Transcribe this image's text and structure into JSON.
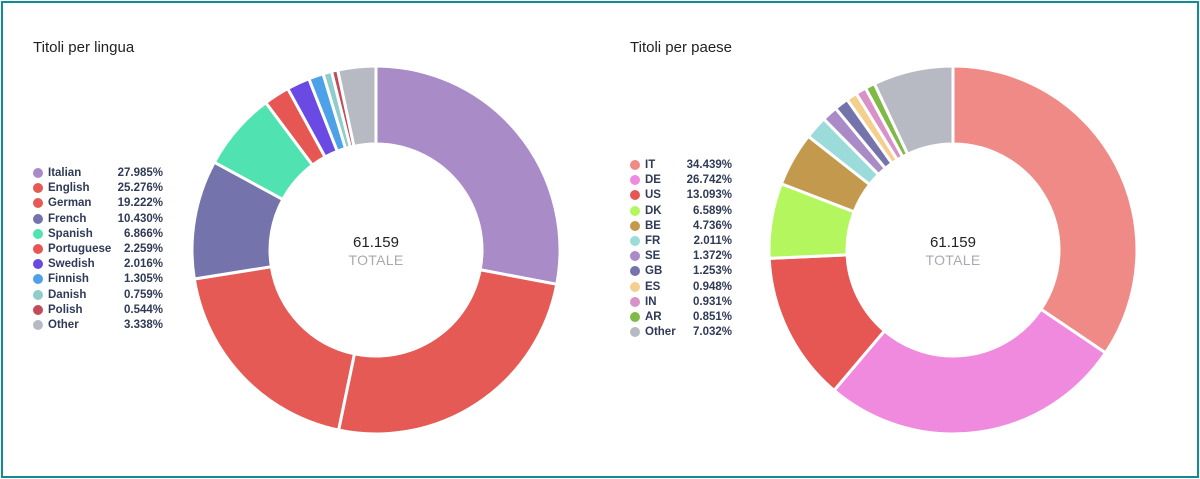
{
  "chart_data": [
    {
      "type": "pie",
      "title": "Titoli per lingua",
      "total": "61.159",
      "total_label": "TOTALE",
      "categories": [
        "Italian",
        "English",
        "German",
        "French",
        "Spanish",
        "Portuguese",
        "Swedish",
        "Finnish",
        "Danish",
        "Polish",
        "Other"
      ],
      "values": [
        27.985,
        25.276,
        19.222,
        10.43,
        6.866,
        2.259,
        2.016,
        1.305,
        0.759,
        0.544,
        3.338
      ],
      "labels": [
        "27.985%",
        "25.276%",
        "19.222%",
        "10.430%",
        "6.866%",
        "2.259%",
        "2.016%",
        "1.305%",
        "0.759%",
        "0.544%",
        "3.338%"
      ],
      "colors": [
        "#a98bc8",
        "#e55a55",
        "#e55a55",
        "#7473ac",
        "#51e2b1",
        "#e65754",
        "#6a4ae3",
        "#4ca1e8",
        "#8fcdcb",
        "#c24b5a",
        "#b8bac3"
      ],
      "legend_position": "left"
    },
    {
      "type": "pie",
      "title": "Titoli per paese",
      "total": "61.159",
      "total_label": "TOTALE",
      "categories": [
        "IT",
        "DE",
        "US",
        "DK",
        "BE",
        "FR",
        "SE",
        "GB",
        "ES",
        "IN",
        "AR",
        "Other"
      ],
      "values": [
        34.439,
        26.742,
        13.093,
        6.589,
        4.736,
        2.011,
        1.372,
        1.253,
        0.948,
        0.931,
        0.851,
        7.032
      ],
      "labels": [
        "34.439%",
        "26.742%",
        "13.093%",
        "6.589%",
        "4.736%",
        "2.011%",
        "1.372%",
        "1.253%",
        "0.948%",
        "0.931%",
        "0.851%",
        "7.032%"
      ],
      "colors": [
        "#ef8a86",
        "#ef8ade",
        "#e65754",
        "#b4f65e",
        "#c3994d",
        "#9bdcdb",
        "#a98bc8",
        "#7473ac",
        "#f4cf8d",
        "#d892c8",
        "#7fb946",
        "#b8bac3"
      ],
      "legend_position": "left"
    }
  ]
}
